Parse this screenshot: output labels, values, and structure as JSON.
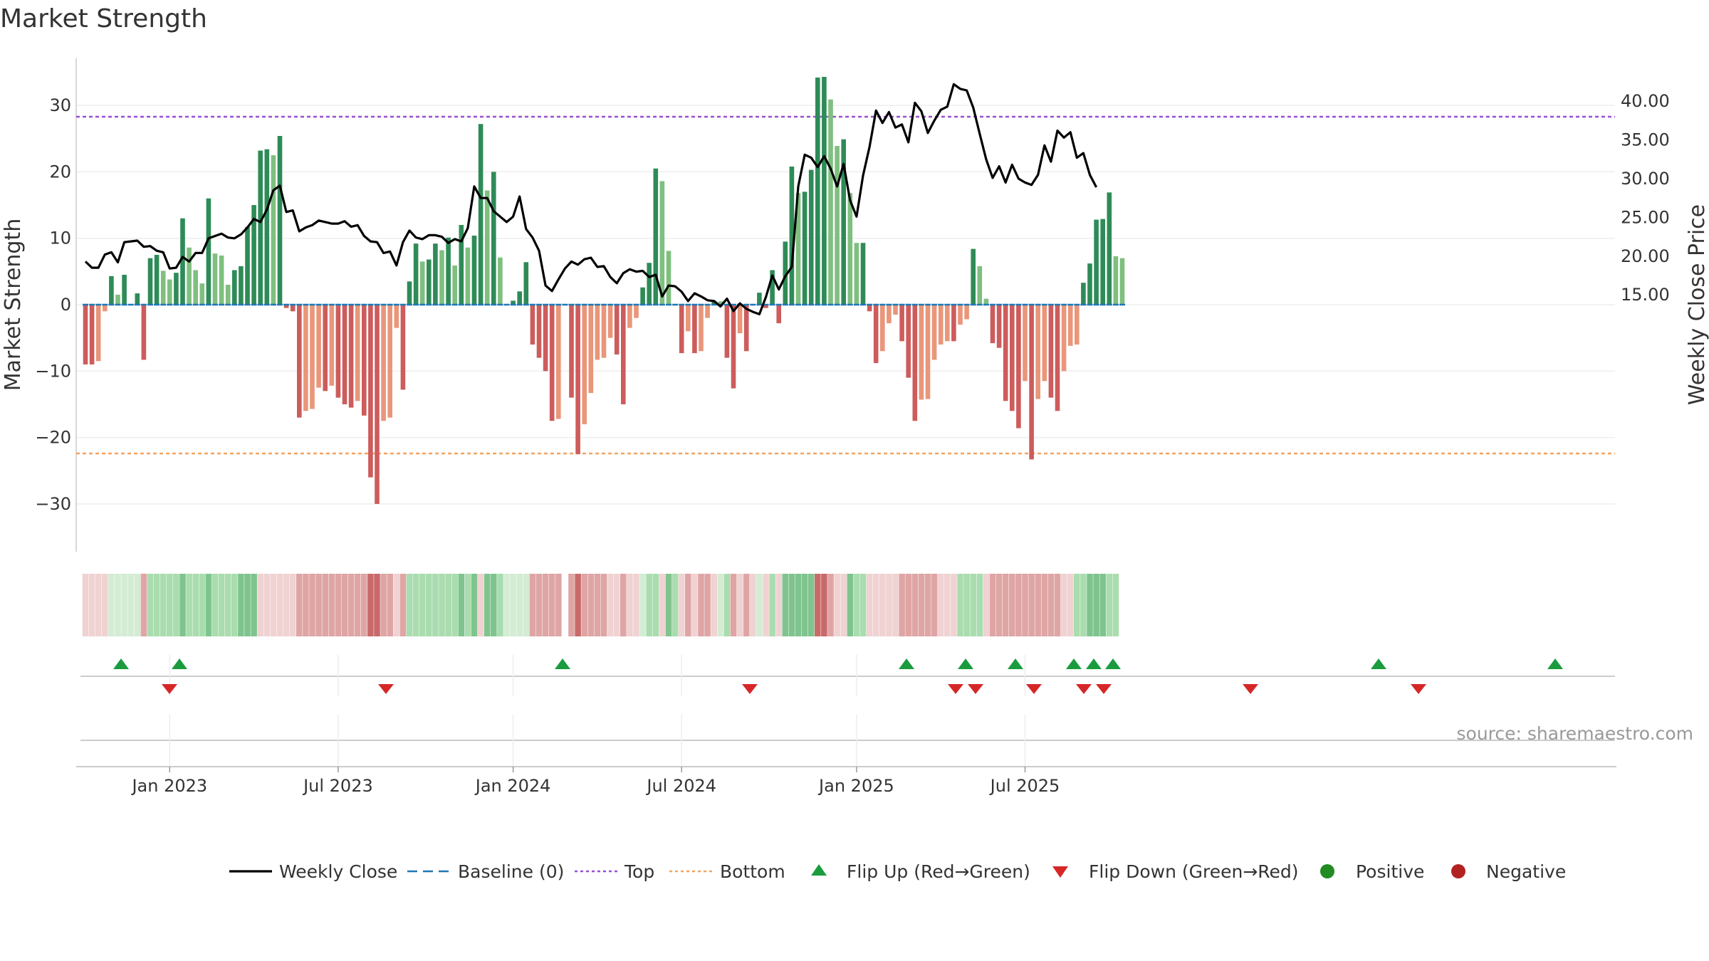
{
  "chart_data": {
    "type": "bar",
    "title": "Market Strength",
    "ylabel": "Market Strength",
    "y2label": "Weekly Close Price",
    "ylim": [
      -37,
      37.5
    ],
    "y2lim": [
      9.3,
      45.5
    ],
    "yticks": [
      "30",
      "20",
      "10",
      "0",
      "−10",
      "−20",
      "−30"
    ],
    "y2ticks": [
      "40.00",
      "35.00",
      "30.00",
      "25.00",
      "20.00",
      "15.00"
    ],
    "xticks": [
      "Jan 2023",
      "Jul 2023",
      "Jan 2024",
      "Jul 2024",
      "Jan 2025",
      "Jul 2025"
    ],
    "xtick_index": [
      13,
      39,
      66,
      92,
      119,
      145
    ],
    "top_level": 28.3,
    "bottom_level": -22.4,
    "baseline": 0,
    "values": [
      -9,
      -9,
      -8.5,
      -1,
      4.3,
      1.5,
      4.5,
      0,
      1.7,
      -8.3,
      7,
      7.5,
      5.1,
      3.8,
      4.8,
      13,
      8.6,
      5.2,
      3.2,
      16,
      7.7,
      7.4,
      3,
      5.2,
      5.8,
      11.7,
      15,
      23.2,
      23.4,
      22.5,
      25.4,
      -0.5,
      -1,
      -17,
      -16,
      -15.7,
      -12.5,
      -13,
      -12.2,
      -14,
      -15,
      -15.5,
      -14.5,
      -16.7,
      -26,
      -30,
      -17.5,
      -17,
      -3.5,
      -12.8,
      3.5,
      9.2,
      6.5,
      6.8,
      9.2,
      8.2,
      10.1,
      5.9,
      12,
      8.6,
      10.4,
      27.2,
      17.2,
      20,
      7.1,
      0,
      0.6,
      2,
      6.4,
      -6,
      -8,
      -10,
      -17.5,
      -17.2,
      0,
      -14,
      -22.5,
      -18,
      -13.3,
      -8.3,
      -8,
      -5,
      -7.5,
      -15,
      -3.5,
      -2,
      2.6,
      6.3,
      20.5,
      18.6,
      8.1,
      0,
      -7.3,
      -4,
      -7.3,
      -7,
      -2,
      0.6,
      0.5,
      -8,
      -12.6,
      -4.3,
      -7,
      0,
      1.8,
      -0.5,
      5.2,
      -2.8,
      9.5,
      20.8,
      16.8,
      17,
      20.3,
      34.2,
      34.3,
      30.9,
      23.9,
      24.9,
      16.8,
      9.3,
      9.3,
      -1,
      -8.8,
      -7,
      -2.8,
      -1.5,
      -5.5,
      -11,
      -17.5,
      -14.3,
      -14.2,
      -8.3,
      -6,
      -5.5,
      -5.5,
      -3,
      -2.2,
      8.4,
      5.8,
      0.9,
      -5.8,
      -6.5,
      -14.5,
      -16,
      -18.6,
      -11.5,
      -23.3,
      -14.2,
      -11.5,
      -14,
      -16,
      -10,
      -6.2,
      -6,
      3.3,
      6.2,
      12.8,
      12.9,
      16.9,
      7.3,
      7
    ],
    "weekly_close": [
      19.3,
      18.5,
      18.5,
      20.2,
      20.5,
      19.2,
      21.8,
      21.9,
      22,
      21.2,
      21.3,
      20.7,
      20.5,
      18.4,
      18.5,
      19.9,
      19.3,
      20.4,
      20.4,
      22.3,
      22.6,
      22.9,
      22.4,
      22.3,
      22.8,
      23.7,
      24.8,
      24.4,
      26,
      28.5,
      29.1,
      25.7,
      25.9,
      23.2,
      23.7,
      24,
      24.6,
      24.4,
      24.2,
      24.2,
      24.5,
      23.8,
      24,
      22.6,
      21.9,
      21.8,
      20.4,
      20.6,
      18.8,
      21.8,
      23.3,
      22.4,
      22.2,
      22.7,
      22.7,
      22.5,
      21.7,
      22.2,
      21.9,
      23.6,
      29,
      27.5,
      27.5,
      25.8,
      25.1,
      24.4,
      25.1,
      27.7,
      23.5,
      22.4,
      20.7,
      16.2,
      15.5,
      17,
      18.4,
      19.3,
      18.9,
      19.6,
      19.8,
      18.6,
      18.7,
      17.3,
      16.5,
      17.8,
      18.3,
      18,
      18.1,
      17.3,
      17.6,
      14.8,
      16.2,
      16.1,
      15.4,
      14.2,
      15.2,
      14.8,
      14.3,
      14.2,
      13.5,
      14.5,
      12.9,
      13.9,
      13.2,
      12.8,
      12.5,
      14.7,
      17.5,
      15.7,
      17.4,
      18.6,
      29,
      33.1,
      32.7,
      31.5,
      32.9,
      31.3,
      29,
      31.9,
      27.2,
      25.1,
      30.4,
      34.1,
      38.8,
      37.2,
      38.6,
      36.6,
      37,
      34.7,
      39.8,
      38.7,
      35.9,
      37.5,
      38.9,
      39.3,
      42.2,
      41.6,
      41.4,
      39.2,
      35.8,
      32.5,
      30.1,
      31.6,
      29.5,
      31.8,
      30,
      29.5,
      29.2,
      30.5,
      34.3,
      32.2,
      36.2,
      35.3,
      36,
      32.7,
      33.3,
      30.5,
      28.9
    ],
    "bottom_strip_shades": [
      4,
      4,
      4,
      4,
      1,
      1,
      1,
      1,
      1,
      5,
      2,
      2,
      2,
      2,
      2,
      3,
      2,
      2,
      2,
      3,
      2,
      2,
      2,
      2,
      3,
      3,
      3,
      4,
      4,
      4,
      4,
      4,
      4,
      5,
      5,
      5,
      5,
      5,
      5,
      5,
      5,
      5,
      5,
      5,
      6,
      6,
      5,
      5,
      4,
      5,
      2,
      2,
      2,
      2,
      2,
      2,
      2,
      2,
      3,
      2,
      3,
      4,
      3,
      3,
      2,
      1,
      1,
      1,
      1,
      5,
      5,
      5,
      5,
      5,
      0,
      5,
      6,
      5,
      5,
      5,
      5,
      4,
      4,
      5,
      4,
      4,
      1,
      2,
      2,
      4,
      3,
      2,
      4,
      5,
      4,
      5,
      5,
      4,
      1,
      2,
      5,
      4,
      5,
      4,
      1,
      4,
      2,
      4,
      3,
      3,
      3,
      3,
      3,
      6,
      6,
      5,
      4,
      4,
      3,
      2,
      2,
      4,
      4,
      4,
      4,
      4,
      5,
      5,
      5,
      5,
      5,
      5,
      4,
      4,
      4,
      2,
      2,
      2,
      2,
      4,
      5,
      5,
      5,
      5,
      5,
      5,
      5,
      5,
      5,
      5,
      5,
      4,
      4,
      2,
      2,
      3,
      3,
      3,
      2,
      2
    ],
    "flip_up_index": [
      2,
      5,
      25,
      42,
      45,
      48,
      51,
      52,
      53,
      66,
      74
    ],
    "flip_down_index": [
      5,
      16,
      36,
      48,
      49,
      52,
      54,
      55,
      60,
      68
    ],
    "series": [
      {
        "name": "Weekly Close",
        "color": "#000000"
      },
      {
        "name": "Baseline (0)",
        "color": "#1f77b4"
      },
      {
        "name": "Top",
        "color": "#9a4fd1"
      },
      {
        "name": "Bottom",
        "color": "#f4a460"
      },
      {
        "name": "Flip Up (Red→Green)",
        "color": "#1a9c3e"
      },
      {
        "name": "Flip Down (Green→Red)",
        "color": "#d62728"
      },
      {
        "name": "Positive",
        "color": "#228b22"
      },
      {
        "name": "Negative",
        "color": "#b22222"
      }
    ],
    "colors": {
      "pos_dark": "#2e8b57",
      "pos_light": "#7fbf7f",
      "neg_dark": "#cd5c5c",
      "neg_light": "#e9967a",
      "strip_shades": [
        "#ffffff",
        "#d3ecd3",
        "#a9dcae",
        "#7fc48e",
        "#f0d2d2",
        "#dfa5a5",
        "#c96a6a"
      ]
    }
  },
  "source": "source: sharemaestro.com"
}
